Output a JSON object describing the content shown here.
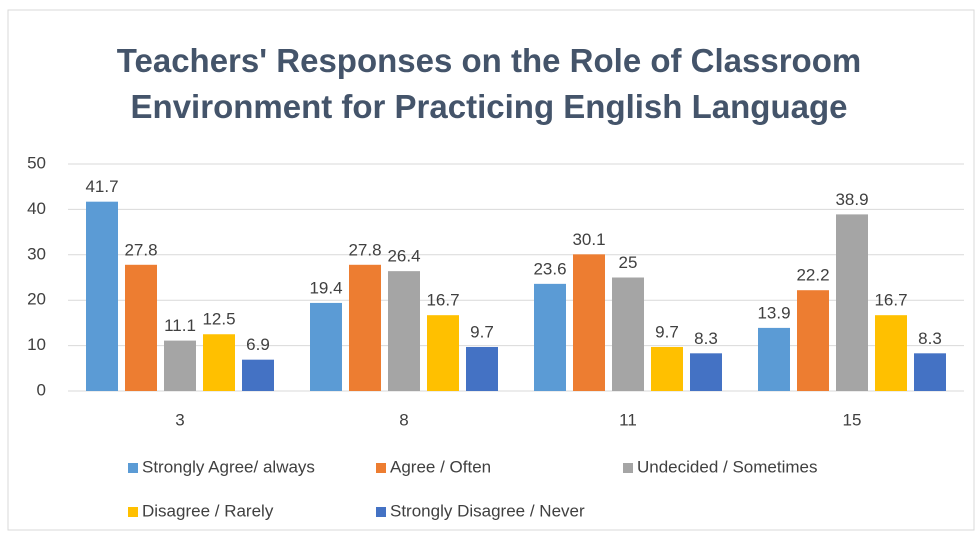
{
  "chart_data": {
    "type": "bar",
    "title": "Teachers' Responses on the Role of Classroom Environment for Practicing English Language",
    "categories": [
      "3",
      "8",
      "11",
      "15"
    ],
    "series": [
      {
        "name": "Strongly Agree/ always",
        "color": "#5b9bd5",
        "values": [
          41.7,
          19.4,
          23.6,
          13.9
        ]
      },
      {
        "name": "Agree / Often",
        "color": "#ed7d31",
        "values": [
          27.8,
          27.8,
          30.1,
          22.2
        ]
      },
      {
        "name": "Undecided / Sometimes",
        "color": "#a5a5a5",
        "values": [
          11.1,
          26.4,
          25,
          38.9
        ]
      },
      {
        "name": "Disagree / Rarely",
        "color": "#ffc000",
        "values": [
          12.5,
          16.7,
          9.7,
          16.7
        ]
      },
      {
        "name": "Strongly Disagree / Never",
        "color": "#4472c4",
        "values": [
          6.9,
          9.7,
          8.3,
          8.3
        ]
      }
    ],
    "ylim": [
      0,
      50
    ],
    "yticks": [
      0,
      10,
      20,
      30,
      40,
      50
    ],
    "grid": true,
    "legend": "bottom"
  }
}
